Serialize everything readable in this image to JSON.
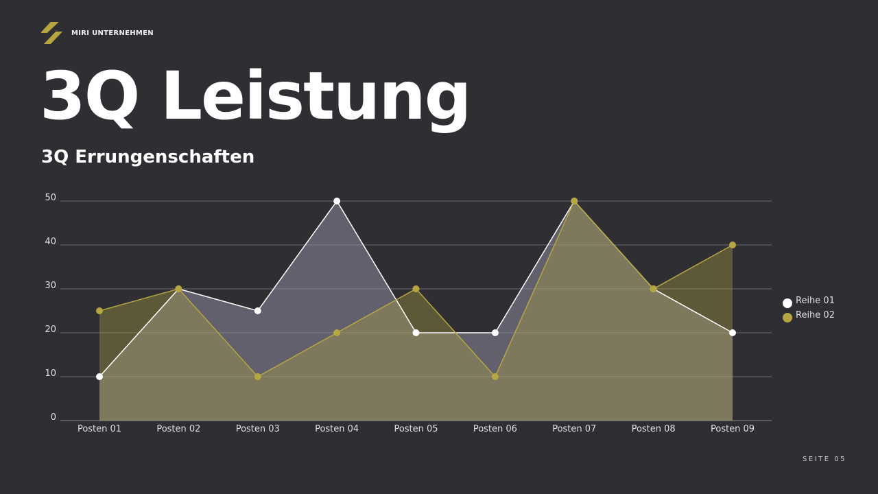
{
  "brand": {
    "name": "MIRI UNTERNEHMEN",
    "logo_color": "#b5a642"
  },
  "title": "3Q Leistung",
  "subtitle": "3Q Errungenschaften",
  "page_label": "SEITE 05",
  "chart_data": {
    "type": "area",
    "categories": [
      "Posten 01",
      "Posten 02",
      "Posten 03",
      "Posten 04",
      "Posten 05",
      "Posten 06",
      "Posten 07",
      "Posten 08",
      "Posten 09"
    ],
    "series": [
      {
        "name": "Reihe 01",
        "values": [
          10,
          30,
          25,
          50,
          20,
          20,
          50,
          30,
          20
        ],
        "color": "#ffffff"
      },
      {
        "name": "Reihe 02",
        "values": [
          25,
          30,
          10,
          20,
          30,
          10,
          50,
          30,
          40
        ],
        "color": "#b5a642"
      }
    ],
    "ylim": [
      0,
      50
    ],
    "yticks": [
      0,
      10,
      20,
      30,
      40,
      50
    ],
    "grid": true,
    "legend": "right"
  }
}
